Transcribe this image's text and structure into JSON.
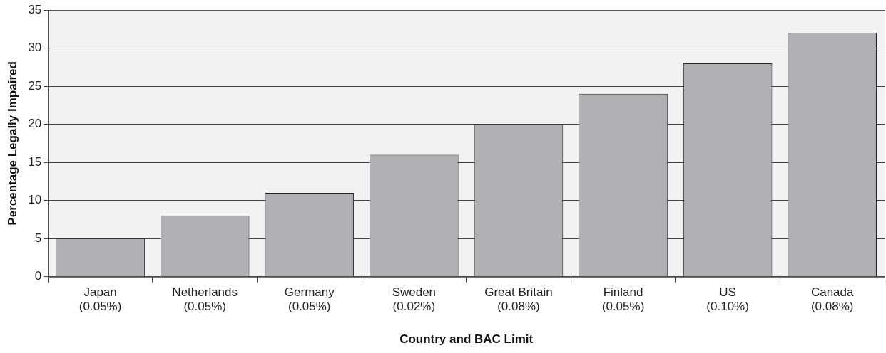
{
  "chart_data": {
    "type": "bar",
    "xlabel": "Country and BAC Limit",
    "ylabel": "Percentage Legally Impaired",
    "categories": [
      "Japan\n(0.05%)",
      "Netherlands\n(0.05%)",
      "Germany\n(0.05%)",
      "Sweden\n(0.02%)",
      "Great Britain\n(0.08%)",
      "Finland\n(0.05%)",
      "US\n(0.10%)",
      "Canada\n(0.08%)"
    ],
    "values": [
      5,
      8,
      11,
      16,
      20,
      24,
      28,
      32
    ],
    "color": "#b1b1b4",
    "ylim": [
      0,
      35
    ],
    "yticks": [
      0,
      5,
      10,
      15,
      20,
      25,
      30,
      35
    ],
    "grid": "y",
    "legend": false
  }
}
